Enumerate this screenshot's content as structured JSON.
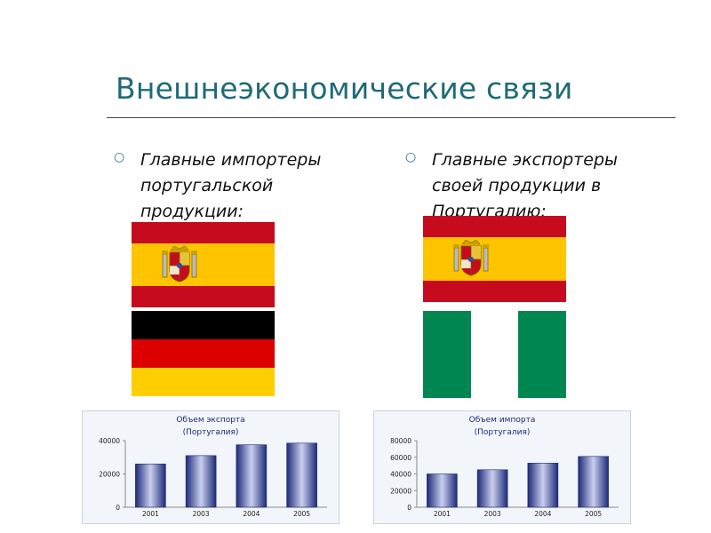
{
  "slide": {
    "title": "Внешнеэкономические связи",
    "bullet_left": "Главные импортеры португальской продукции:",
    "bullet_right": "Главные экспортеры своей продукции в Португалию:"
  },
  "colors": {
    "title": "#1f6b77",
    "spain_red": "#c60b1e",
    "spain_yellow": "#ffc400",
    "germany_black": "#000000",
    "germany_red": "#dd0000",
    "germany_gold": "#ffce00",
    "nigeria_green": "#008751",
    "bar_dark": "#1c2a78",
    "bar_light": "#c9cfee"
  },
  "flags": {
    "left": [
      "spain-flag",
      "germany-flag"
    ],
    "right": [
      "spain-flag",
      "nigeria-flag"
    ]
  },
  "chart_data": [
    {
      "type": "bar",
      "title_lines": [
        "Объем экспорта",
        "(Португалия)"
      ],
      "categories": [
        "2001",
        "2003",
        "2004",
        "2005"
      ],
      "values": [
        26000,
        31000,
        37500,
        38500
      ],
      "ylim": [
        0,
        40000
      ],
      "yticks": [
        "40000",
        "20000",
        "0"
      ],
      "ytick_values": [
        40000,
        20000,
        0
      ],
      "grid": false,
      "legend": "none"
    },
    {
      "type": "bar",
      "title_lines": [
        "Объем импорта",
        "(Португалия)"
      ],
      "categories": [
        "2001",
        "2003",
        "2004",
        "2005"
      ],
      "values": [
        40000,
        45000,
        53000,
        61000
      ],
      "ylim": [
        0,
        80000
      ],
      "yticks": [
        "80000",
        "60000",
        "40000",
        "20000",
        "0"
      ],
      "ytick_values": [
        80000,
        60000,
        40000,
        20000,
        0
      ],
      "grid": false,
      "legend": "none"
    }
  ]
}
